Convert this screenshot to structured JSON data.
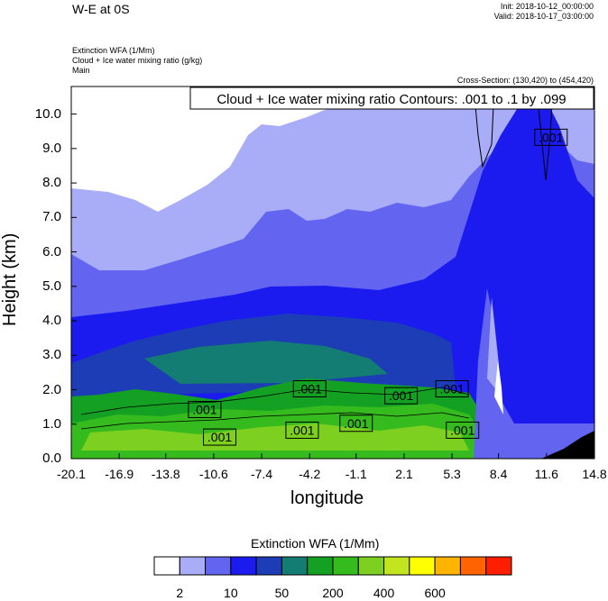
{
  "header": {
    "title": "W-E at 0S",
    "init": "Init: 2018-10-12_00:00:00",
    "valid": "Valid: 2018-10-17_03:00:00",
    "var1": "Extinction WFA   (1/Mm)",
    "var2": "Cloud + Ice water mixing ratio   (g/kg)",
    "var3": "Main",
    "cross_section": "Cross-Section: (130,420) to (454,420)",
    "contour_info": "Cloud + Ice water mixing ratio Contours: .001 to .1 by .099"
  },
  "chart_data": {
    "type": "heatmap",
    "xlabel": "longitude",
    "ylabel": "Height (km)",
    "xlim": [
      -20.1,
      14.8
    ],
    "ylim": [
      0,
      10.8
    ],
    "x_ticks": [
      "-20.1",
      "-16.9",
      "-13.8",
      "-10.6",
      "-7.4",
      "-4.2",
      "-1.1",
      "2.1",
      "5.3",
      "8.4",
      "11.6",
      "14.8"
    ],
    "x_tick_values": [
      -20.1,
      -16.9,
      -13.8,
      -10.6,
      -7.4,
      -4.2,
      -1.1,
      2.1,
      5.3,
      8.4,
      11.6,
      14.8
    ],
    "y_ticks": [
      "0.0",
      "1.0",
      "2.0",
      "3.0",
      "4.0",
      "5.0",
      "6.0",
      "7.0",
      "8.0",
      "9.0",
      "10.0"
    ],
    "y_tick_values": [
      0,
      1,
      2,
      3,
      4,
      5,
      6,
      7,
      8,
      9,
      10
    ],
    "contour_labels": [
      {
        "text": ".001",
        "lon": 11.9,
        "h": 9.3
      },
      {
        "text": ".001",
        "lon": -4.2,
        "h": 2.0
      },
      {
        "text": ".001",
        "lon": -11.2,
        "h": 1.4
      },
      {
        "text": ".001",
        "lon": 1.9,
        "h": 1.8
      },
      {
        "text": ".001",
        "lon": 5.3,
        "h": 2.0
      },
      {
        "text": ".001",
        "lon": -10.2,
        "h": 0.6
      },
      {
        "text": ".001",
        "lon": -4.7,
        "h": 0.8
      },
      {
        "text": ".001",
        "lon": -1.1,
        "h": 1.0
      },
      {
        "text": ".001",
        "lon": 6.0,
        "h": 0.8
      }
    ],
    "colorbar": {
      "title": "Extinction WFA  (1/Mm)",
      "colors": [
        "#ffffff",
        "#a9acf6",
        "#6365f1",
        "#1b1bf0",
        "#1c3db6",
        "#137c73",
        "#14a022",
        "#35bb1d",
        "#7dd01f",
        "#c3e51f",
        "#ffff00",
        "#ffb400",
        "#ff6400",
        "#ff1e00"
      ],
      "labels": [
        "2",
        "10",
        "50",
        "200",
        "400",
        "600"
      ]
    }
  }
}
